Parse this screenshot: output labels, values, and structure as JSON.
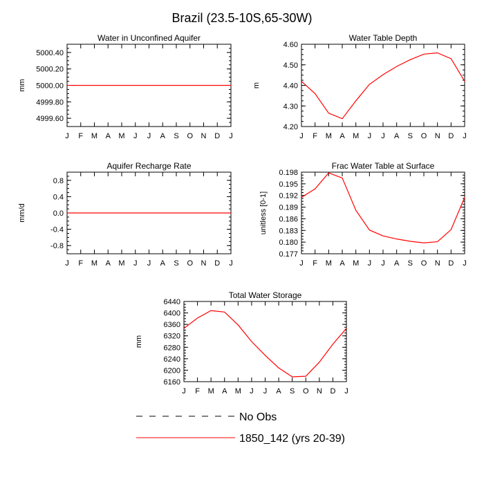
{
  "figure": {
    "title": "Brazil (23.5-10S,65-30W)",
    "months": [
      "J",
      "F",
      "M",
      "A",
      "M",
      "J",
      "J",
      "A",
      "S",
      "O",
      "N",
      "D",
      "J"
    ],
    "colors": {
      "model": "#ff0000",
      "axis": "#000000",
      "obs": "#000000"
    }
  },
  "chart_data": [
    {
      "type": "line",
      "title": "Water in Unconfined Aquifer",
      "ylabel": "mm",
      "ylim": [
        4999.5,
        5000.5
      ],
      "yticks": [
        4999.6,
        4999.8,
        5000.0,
        5000.2,
        5000.4
      ],
      "ytick_labels": [
        "4999.60",
        "4999.80",
        "5000.00",
        "5000.20",
        "5000.40"
      ],
      "x": [
        "J",
        "F",
        "M",
        "A",
        "M",
        "J",
        "J",
        "A",
        "S",
        "O",
        "N",
        "D",
        "J"
      ],
      "series": [
        {
          "name": "1850_142 (yrs 20-39)",
          "values": [
            5000,
            5000,
            5000,
            5000,
            5000,
            5000,
            5000,
            5000,
            5000,
            5000,
            5000,
            5000,
            5000
          ]
        }
      ]
    },
    {
      "type": "line",
      "title": "Water Table Depth",
      "ylabel": "m",
      "ylim": [
        4.2,
        4.6
      ],
      "yticks": [
        4.2,
        4.3,
        4.4,
        4.5,
        4.6
      ],
      "ytick_labels": [
        "4.20",
        "4.30",
        "4.40",
        "4.50",
        "4.60"
      ],
      "x": [
        "J",
        "F",
        "M",
        "A",
        "M",
        "J",
        "J",
        "A",
        "S",
        "O",
        "N",
        "D",
        "J"
      ],
      "series": [
        {
          "name": "1850_142 (yrs 20-39)",
          "values": [
            4.42,
            4.36,
            4.265,
            4.238,
            4.325,
            4.405,
            4.452,
            4.492,
            4.525,
            4.552,
            4.558,
            4.53,
            4.42
          ]
        }
      ]
    },
    {
      "type": "line",
      "title": "Aquifer Recharge Rate",
      "ylabel": "mm/d",
      "ylim": [
        -1.0,
        1.0
      ],
      "yticks": [
        -0.8,
        -0.4,
        0.0,
        0.4,
        0.8
      ],
      "ytick_labels": [
        "-0.8",
        "-0.4",
        "0.0",
        "0.4",
        "0.8"
      ],
      "x": [
        "J",
        "F",
        "M",
        "A",
        "M",
        "J",
        "J",
        "A",
        "S",
        "O",
        "N",
        "D",
        "J"
      ],
      "series": [
        {
          "name": "1850_142 (yrs 20-39)",
          "values": [
            0,
            0,
            0,
            0,
            0,
            0,
            0,
            0,
            0,
            0,
            0,
            0,
            0
          ]
        }
      ]
    },
    {
      "type": "line",
      "title": "Frac Water Table at Surface",
      "ylabel": "unitless [0-1]",
      "ylim": [
        0.177,
        0.198
      ],
      "yticks": [
        0.177,
        0.18,
        0.183,
        0.186,
        0.189,
        0.192,
        0.195,
        0.198
      ],
      "ytick_labels": [
        "0.177",
        "0.180",
        "0.183",
        "0.186",
        "0.189",
        "0.192",
        "0.195",
        "0.198"
      ],
      "x": [
        "J",
        "F",
        "M",
        "A",
        "M",
        "J",
        "J",
        "A",
        "S",
        "O",
        "N",
        "D",
        "J"
      ],
      "series": [
        {
          "name": "1850_142 (yrs 20-39)",
          "values": [
            0.1915,
            0.1937,
            0.1978,
            0.1965,
            0.1882,
            0.1831,
            0.1816,
            0.1808,
            0.1802,
            0.1798,
            0.1801,
            0.1832,
            0.1915
          ]
        }
      ]
    },
    {
      "type": "line",
      "title": "Total Water Storage",
      "ylabel": "mm",
      "ylim": [
        6160,
        6440
      ],
      "yticks": [
        6160,
        6200,
        6240,
        6280,
        6320,
        6360,
        6400,
        6440
      ],
      "ytick_labels": [
        "6160",
        "6200",
        "6240",
        "6280",
        "6320",
        "6360",
        "6400",
        "6440"
      ],
      "x": [
        "J",
        "F",
        "M",
        "A",
        "M",
        "J",
        "J",
        "A",
        "S",
        "O",
        "N",
        "D",
        "J"
      ],
      "series": [
        {
          "name": "1850_142 (yrs 20-39)",
          "values": [
            6346,
            6382,
            6408,
            6403,
            6358,
            6300,
            6252,
            6208,
            6177,
            6179,
            6228,
            6291,
            6346
          ]
        }
      ]
    }
  ],
  "legend": {
    "items": [
      {
        "label": "No Obs",
        "style": "dashed",
        "color": "#000000"
      },
      {
        "label": "1850_142 (yrs 20-39)",
        "style": "solid",
        "color": "#ff0000"
      }
    ]
  }
}
